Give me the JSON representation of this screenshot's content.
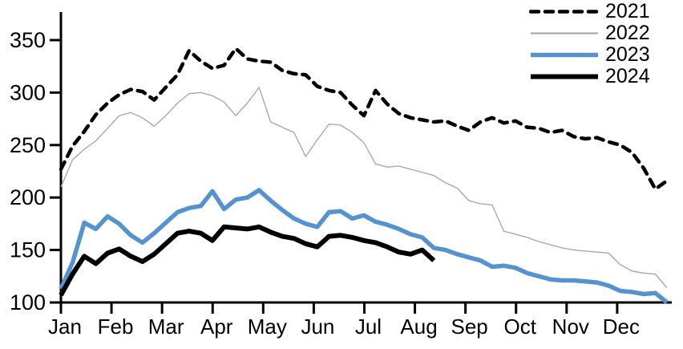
{
  "chart_data": {
    "type": "line",
    "title": "",
    "xlabel": "",
    "ylabel": "",
    "sampling": "weekly points, January through December",
    "x_axis": {
      "tick_labels": [
        "Jan",
        "Feb",
        "Mar",
        "Apr",
        "May",
        "Jun",
        "Jul",
        "Aug",
        "Sep",
        "Oct",
        "Nov",
        "Dec"
      ]
    },
    "y_axis": {
      "ticks": [
        100,
        150,
        200,
        250,
        300,
        350
      ],
      "range": [
        100,
        350
      ],
      "grid": false
    },
    "legend": {
      "position": "top-right",
      "entries": [
        "2021",
        "2022",
        "2023",
        "2024"
      ]
    },
    "colors": {
      "black": "#000000",
      "gray": "#a3a3a3",
      "blue": "#5493cf"
    },
    "series": [
      {
        "name": "2022",
        "color": "#a3a3a3",
        "style": "solid",
        "width": 1.3,
        "values": [
          210,
          236,
          246,
          254,
          266,
          278,
          281,
          276,
          268,
          278,
          290,
          299,
          300,
          297,
          291,
          278,
          290,
          305,
          272,
          267,
          262,
          239,
          255,
          270,
          269,
          262,
          252,
          232,
          229,
          230,
          227,
          224,
          221,
          214,
          209,
          197,
          194,
          193,
          168,
          165,
          162,
          158,
          155,
          152,
          150,
          149,
          148,
          147,
          136,
          130,
          128,
          127,
          114
        ]
      },
      {
        "name": "2021",
        "color": "#000000",
        "style": "dashed",
        "width": 4.5,
        "values": [
          227,
          249,
          263,
          279,
          290,
          298,
          303,
          301,
          293,
          305,
          317,
          340,
          330,
          323,
          326,
          342,
          332,
          330,
          329,
          321,
          318,
          317,
          306,
          302,
          300,
          288,
          278,
          302,
          289,
          280,
          276,
          274,
          272,
          273,
          268,
          264,
          272,
          276,
          271,
          273,
          267,
          266,
          262,
          264,
          258,
          256,
          257,
          253,
          250,
          243,
          228,
          208,
          216
        ]
      },
      {
        "name": "2023",
        "color": "#5493cf",
        "style": "solid",
        "width": 5.5,
        "values": [
          113,
          138,
          176,
          170,
          182,
          175,
          164,
          157,
          166,
          176,
          186,
          190,
          192,
          206,
          189,
          198,
          200,
          207,
          197,
          188,
          180,
          175,
          172,
          186,
          187,
          180,
          183,
          177,
          174,
          170,
          165,
          162,
          152,
          150,
          146,
          143,
          140,
          134,
          135,
          133,
          128,
          125,
          122,
          121,
          121,
          120,
          119,
          116,
          111,
          110,
          108,
          109,
          100
        ]
      },
      {
        "name": "2024",
        "color": "#000000",
        "style": "solid",
        "width": 6,
        "values": [
          107,
          127,
          144,
          137,
          147,
          151,
          144,
          139,
          146,
          156,
          166,
          168,
          166,
          159,
          172,
          171,
          170,
          172,
          167,
          163,
          161,
          156,
          153,
          163,
          164,
          162,
          159,
          157,
          153,
          148,
          146,
          150,
          140
        ]
      }
    ],
    "draw_order": [
      "2022",
      "2021",
      "2023",
      "2024"
    ]
  }
}
